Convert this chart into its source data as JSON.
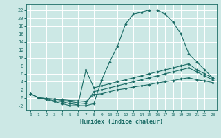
{
  "xlabel": "Humidex (Indice chaleur)",
  "bg_color": "#cce8e5",
  "line_color": "#1a6b65",
  "xlim": [
    -0.5,
    23.5
  ],
  "ylim": [
    -3.2,
    23.5
  ],
  "xtick_labels": [
    "0",
    "1",
    "2",
    "3",
    "4",
    "5",
    "6",
    "7",
    "8",
    "9",
    "10",
    "11",
    "12",
    "13",
    "14",
    "15",
    "16",
    "17",
    "18",
    "19",
    "20",
    "21",
    "22",
    "23"
  ],
  "ytick_vals": [
    -2,
    0,
    2,
    4,
    6,
    8,
    10,
    12,
    14,
    16,
    18,
    20,
    22
  ],
  "line1_x": [
    0,
    1,
    2,
    3,
    4,
    5,
    6,
    7,
    8,
    9,
    10,
    11,
    12,
    13,
    14,
    15,
    16,
    17,
    18,
    19,
    20,
    21,
    22,
    23
  ],
  "line1_y": [
    1.0,
    0.0,
    -0.5,
    -1.0,
    -1.5,
    -2.0,
    -2.0,
    -2.0,
    -1.5,
    4.5,
    9.0,
    13.0,
    18.5,
    21.0,
    21.5,
    22.0,
    22.0,
    21.0,
    19.0,
    16.0,
    11.0,
    9.0,
    7.0,
    5.0
  ],
  "line2_x": [
    0,
    1,
    2,
    3,
    4,
    5,
    6,
    7,
    8,
    9,
    10,
    11,
    12,
    13,
    14,
    15,
    16,
    17,
    18,
    19,
    20,
    21,
    22,
    23
  ],
  "line2_y": [
    1.0,
    0.0,
    -0.3,
    -0.8,
    -1.0,
    -1.5,
    -1.8,
    7.0,
    2.5,
    3.0,
    3.5,
    4.0,
    4.5,
    5.0,
    5.5,
    6.0,
    6.5,
    7.0,
    7.5,
    8.0,
    8.5,
    7.0,
    6.0,
    5.0
  ],
  "line3_x": [
    0,
    1,
    2,
    3,
    4,
    5,
    6,
    7,
    8,
    9,
    10,
    11,
    12,
    13,
    14,
    15,
    16,
    17,
    18,
    19,
    20,
    21,
    22,
    23
  ],
  "line3_y": [
    1.0,
    0.0,
    -0.2,
    -0.4,
    -0.7,
    -1.0,
    -1.3,
    -1.5,
    1.5,
    2.0,
    2.5,
    3.0,
    3.5,
    4.0,
    4.5,
    5.0,
    5.5,
    6.0,
    6.5,
    7.0,
    7.5,
    6.5,
    5.5,
    4.5
  ],
  "line4_x": [
    0,
    1,
    2,
    3,
    4,
    5,
    6,
    7,
    8,
    9,
    10,
    11,
    12,
    13,
    14,
    15,
    16,
    17,
    18,
    19,
    20,
    21,
    22,
    23
  ],
  "line4_y": [
    1.0,
    0.0,
    -0.2,
    -0.3,
    -0.5,
    -0.7,
    -0.8,
    -1.0,
    0.8,
    1.0,
    1.5,
    2.0,
    2.3,
    2.7,
    3.0,
    3.3,
    3.7,
    4.0,
    4.3,
    4.7,
    5.0,
    4.5,
    4.2,
    3.8
  ]
}
